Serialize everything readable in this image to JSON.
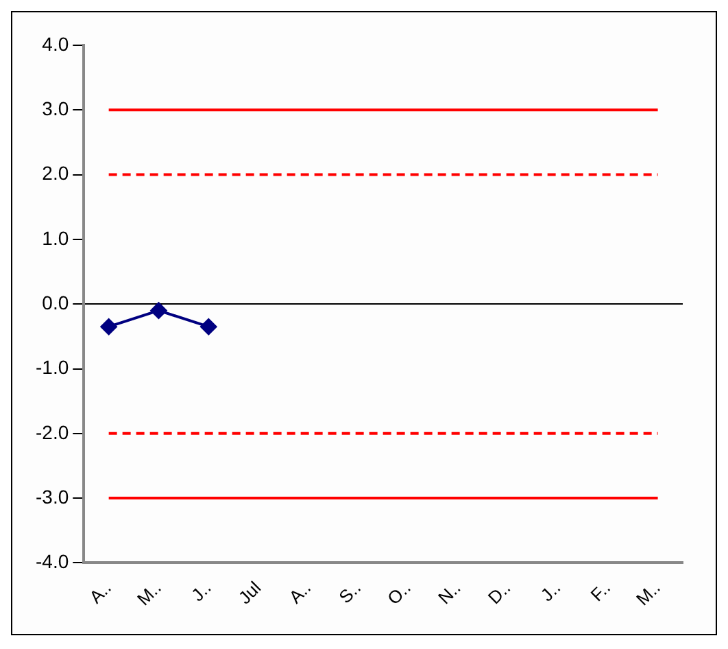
{
  "chart_data": {
    "type": "line",
    "categories": [
      "A..",
      "M..",
      "J..",
      "Jul",
      "A..",
      "S..",
      "O..",
      "N..",
      "D..",
      "J..",
      "F..",
      "M.."
    ],
    "series": [
      {
        "color": "#000080",
        "values": [
          -0.35,
          -0.1,
          -0.35,
          null,
          null,
          null,
          null,
          null,
          null,
          null,
          null,
          null
        ]
      }
    ],
    "ylim": [
      -4,
      4
    ],
    "yticks": [
      {
        "value": -4,
        "label": "-4.0"
      },
      {
        "value": -3,
        "label": "-3.0"
      },
      {
        "value": -2,
        "label": "-2.0"
      },
      {
        "value": -1,
        "label": "-1.0"
      },
      {
        "value": 0,
        "label": "0.0"
      },
      {
        "value": 1,
        "label": "1.0"
      },
      {
        "value": 2,
        "label": "2.0"
      },
      {
        "value": 3,
        "label": "3.0"
      },
      {
        "value": 4,
        "label": "4.0"
      }
    ],
    "ref_lines": [
      {
        "axis": "y",
        "value": 3,
        "color": "#ff0000",
        "line_style": "solid"
      },
      {
        "axis": "y",
        "value": 2,
        "color": "#ff0000",
        "line_style": "dashed"
      },
      {
        "axis": "y",
        "value": -2,
        "color": "#ff0000",
        "line_style": "dashed"
      },
      {
        "axis": "y",
        "value": -3,
        "color": "#ff0000",
        "line_style": "solid"
      }
    ],
    "marker": "diamond",
    "line_style": "solid",
    "grid": false,
    "legend": false
  }
}
